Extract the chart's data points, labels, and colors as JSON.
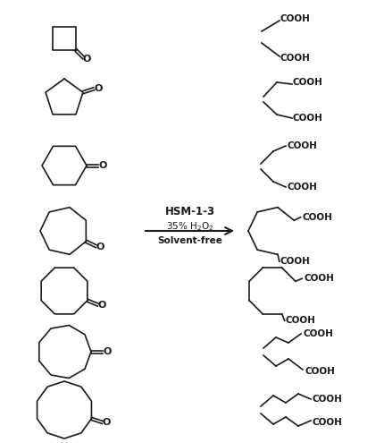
{
  "bg_color": "#ffffff",
  "line_color": "#1a1a1a",
  "text_color": "#1a1a1a",
  "fig_width": 4.3,
  "fig_height": 4.95,
  "dpi": 100,
  "reagent1": "HSM-1-3",
  "reagent2": "35% H$_2$O$_2$",
  "reagent3": "Solvent-free"
}
